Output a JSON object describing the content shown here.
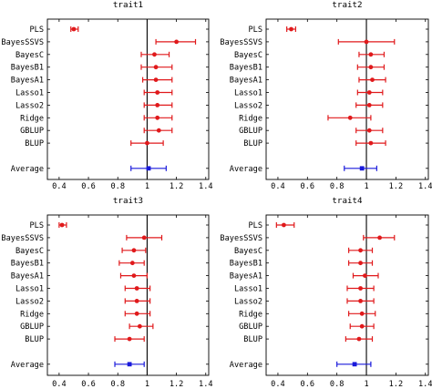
{
  "chart_data": [
    {
      "type": "scatter",
      "title": "trait1",
      "categories": [
        "PLS",
        "BayesSSVS",
        "BayesC",
        "BayesB1",
        "BayesA1",
        "Lasso1",
        "Lasso2",
        "Ridge",
        "GBLUP",
        "BLUP",
        "Average"
      ],
      "series": [
        {
          "points": [
            {
              "category": "PLS",
              "value": 0.5,
              "low": 0.48,
              "high": 0.53
            },
            {
              "category": "BayesSSVS",
              "value": 1.2,
              "low": 1.06,
              "high": 1.33
            },
            {
              "category": "BayesC",
              "value": 1.05,
              "low": 0.96,
              "high": 1.15
            },
            {
              "category": "BayesB1",
              "value": 1.06,
              "low": 0.96,
              "high": 1.17
            },
            {
              "category": "BayesA1",
              "value": 1.06,
              "low": 0.97,
              "high": 1.17
            },
            {
              "category": "Lasso1",
              "value": 1.07,
              "low": 0.98,
              "high": 1.17
            },
            {
              "category": "Lasso2",
              "value": 1.07,
              "low": 0.98,
              "high": 1.17
            },
            {
              "category": "Ridge",
              "value": 1.07,
              "low": 0.98,
              "high": 1.17
            },
            {
              "category": "GBLUP",
              "value": 1.08,
              "low": 0.98,
              "high": 1.17
            },
            {
              "category": "BLUP",
              "value": 1.0,
              "low": 0.89,
              "high": 1.11
            },
            {
              "category": "Average",
              "value": 1.01,
              "low": 0.89,
              "high": 1.13
            }
          ]
        }
      ],
      "reference_line": 1,
      "xlim": [
        0.32,
        1.42
      ],
      "xticks": [
        "0.4",
        "0.6",
        "0.8",
        "1",
        "1.2",
        "1.4"
      ]
    },
    {
      "type": "scatter",
      "title": "trait2",
      "categories": [
        "PLS",
        "BayesSSVS",
        "BayesC",
        "BayesB1",
        "BayesA1",
        "Lasso1",
        "Lasso2",
        "Ridge",
        "GBLUP",
        "BLUP",
        "Average"
      ],
      "series": [
        {
          "points": [
            {
              "category": "PLS",
              "value": 0.49,
              "low": 0.46,
              "high": 0.52
            },
            {
              "category": "BayesSSVS",
              "value": 1.0,
              "low": 0.81,
              "high": 1.19
            },
            {
              "category": "BayesC",
              "value": 1.03,
              "low": 0.95,
              "high": 1.12
            },
            {
              "category": "BayesB1",
              "value": 1.03,
              "low": 0.94,
              "high": 1.12
            },
            {
              "category": "BayesA1",
              "value": 1.04,
              "low": 0.95,
              "high": 1.13
            },
            {
              "category": "Lasso1",
              "value": 1.02,
              "low": 0.94,
              "high": 1.11
            },
            {
              "category": "Lasso2",
              "value": 1.02,
              "low": 0.93,
              "high": 1.11
            },
            {
              "category": "Ridge",
              "value": 0.89,
              "low": 0.74,
              "high": 1.03
            },
            {
              "category": "GBLUP",
              "value": 1.02,
              "low": 0.93,
              "high": 1.11
            },
            {
              "category": "BLUP",
              "value": 1.03,
              "low": 0.93,
              "high": 1.13
            },
            {
              "category": "Average",
              "value": 0.97,
              "low": 0.85,
              "high": 1.07
            }
          ]
        }
      ],
      "reference_line": 1,
      "xlim": [
        0.32,
        1.42
      ],
      "xticks": [
        "0.4",
        "0.6",
        "0.8",
        "1",
        "1.2",
        "1.4"
      ]
    },
    {
      "type": "scatter",
      "title": "trait3",
      "categories": [
        "PLS",
        "BayesSSVS",
        "BayesC",
        "BayesB1",
        "BayesA1",
        "Lasso1",
        "Lasso2",
        "Ridge",
        "GBLUP",
        "BLUP",
        "Average"
      ],
      "series": [
        {
          "points": [
            {
              "category": "PLS",
              "value": 0.42,
              "low": 0.4,
              "high": 0.45
            },
            {
              "category": "BayesSSVS",
              "value": 0.98,
              "low": 0.86,
              "high": 1.1
            },
            {
              "category": "BayesC",
              "value": 0.91,
              "low": 0.83,
              "high": 0.99
            },
            {
              "category": "BayesB1",
              "value": 0.9,
              "low": 0.81,
              "high": 0.98
            },
            {
              "category": "BayesA1",
              "value": 0.91,
              "low": 0.82,
              "high": 1.0
            },
            {
              "category": "Lasso1",
              "value": 0.93,
              "low": 0.85,
              "high": 1.02
            },
            {
              "category": "Lasso2",
              "value": 0.93,
              "low": 0.85,
              "high": 1.02
            },
            {
              "category": "Ridge",
              "value": 0.93,
              "low": 0.85,
              "high": 1.02
            },
            {
              "category": "GBLUP",
              "value": 0.95,
              "low": 0.88,
              "high": 1.04
            },
            {
              "category": "BLUP",
              "value": 0.88,
              "low": 0.78,
              "high": 0.98
            },
            {
              "category": "Average",
              "value": 0.88,
              "low": 0.78,
              "high": 0.98
            }
          ]
        }
      ],
      "reference_line": 1,
      "xlim": [
        0.32,
        1.42
      ],
      "xticks": [
        "0.4",
        "0.6",
        "0.8",
        "1",
        "1.2",
        "1.4"
      ]
    },
    {
      "type": "scatter",
      "title": "trait4",
      "categories": [
        "PLS",
        "BayesSSVS",
        "BayesC",
        "BayesB1",
        "BayesA1",
        "Lasso1",
        "Lasso2",
        "Ridge",
        "GBLUP",
        "BLUP",
        "Average"
      ],
      "series": [
        {
          "points": [
            {
              "category": "PLS",
              "value": 0.44,
              "low": 0.39,
              "high": 0.51
            },
            {
              "category": "BayesSSVS",
              "value": 1.09,
              "low": 0.98,
              "high": 1.19
            },
            {
              "category": "BayesC",
              "value": 0.96,
              "low": 0.88,
              "high": 1.04
            },
            {
              "category": "BayesB1",
              "value": 0.96,
              "low": 0.88,
              "high": 1.04
            },
            {
              "category": "BayesA1",
              "value": 0.99,
              "low": 0.91,
              "high": 1.08
            },
            {
              "category": "Lasso1",
              "value": 0.96,
              "low": 0.87,
              "high": 1.05
            },
            {
              "category": "Lasso2",
              "value": 0.96,
              "low": 0.87,
              "high": 1.05
            },
            {
              "category": "Ridge",
              "value": 0.97,
              "low": 0.88,
              "high": 1.06
            },
            {
              "category": "GBLUP",
              "value": 0.97,
              "low": 0.89,
              "high": 1.05
            },
            {
              "category": "BLUP",
              "value": 0.95,
              "low": 0.86,
              "high": 1.04
            },
            {
              "category": "Average",
              "value": 0.92,
              "low": 0.8,
              "high": 1.03
            }
          ]
        }
      ],
      "reference_line": 1,
      "xlim": [
        0.32,
        1.42
      ],
      "xticks": [
        "0.4",
        "0.6",
        "0.8",
        "1",
        "1.2",
        "1.4"
      ]
    }
  ],
  "colors": {
    "methods": "#e0191b",
    "average": "#1a1adb",
    "reference_line": "#000000"
  }
}
